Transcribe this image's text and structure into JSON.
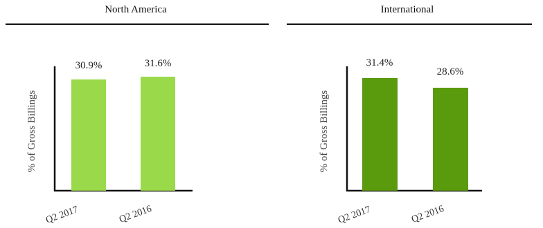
{
  "chart_data": [
    {
      "type": "bar",
      "title": "North America",
      "ylabel": "% of Gross Billings",
      "categories": [
        "Q2 2017",
        "Q2 2016"
      ],
      "values": [
        30.9,
        31.6
      ],
      "value_labels": [
        "30.9%",
        "31.6%"
      ],
      "ylim": [
        0,
        36
      ],
      "grid": false,
      "bar_color": "#9ad94a"
    },
    {
      "type": "bar",
      "title": "International",
      "ylabel": "% of Gross Billings",
      "categories": [
        "Q2 2017",
        "Q2 2016"
      ],
      "values": [
        31.4,
        28.6
      ],
      "value_labels": [
        "31.4%",
        "28.6%"
      ],
      "ylim": [
        0,
        36
      ],
      "grid": false,
      "bar_color": "#5a9a0d"
    }
  ]
}
